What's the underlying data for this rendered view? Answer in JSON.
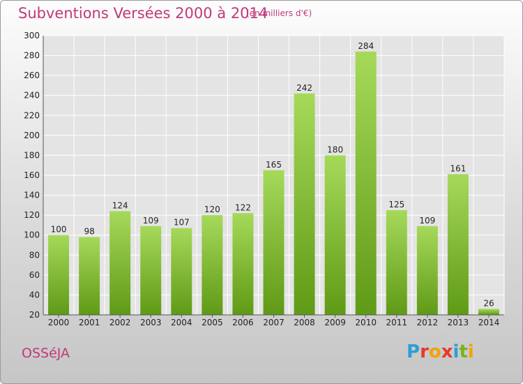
{
  "title": "Subventions Versées 2000 à 2014",
  "subtitle": "(en milliers d'€)",
  "commune": "OSSéJA",
  "logo": {
    "letters": [
      "P",
      "r",
      "o",
      "x",
      "i",
      "t",
      "i"
    ],
    "colors": [
      "#2a9fd6",
      "#e8392b",
      "#f2a20a",
      "#e8392b",
      "#2a9fd6",
      "#7ab317",
      "#f2a20a"
    ]
  },
  "chart_data": {
    "type": "bar",
    "title": "Subventions Versées 2000 à 2014",
    "ylabel": "(en milliers d'€)",
    "categories": [
      "2000",
      "2001",
      "2002",
      "2003",
      "2004",
      "2005",
      "2006",
      "2007",
      "2008",
      "2009",
      "2010",
      "2011",
      "2012",
      "2013",
      "2014"
    ],
    "values": [
      100,
      98,
      124,
      109,
      107,
      120,
      122,
      165,
      242,
      180,
      284,
      125,
      109,
      161,
      26
    ],
    "ylim": [
      20,
      300
    ],
    "yticks": [
      20,
      40,
      60,
      80,
      100,
      120,
      140,
      160,
      180,
      200,
      220,
      240,
      260,
      280,
      300
    ],
    "grid": true,
    "bar_color": "#8cc63f"
  }
}
